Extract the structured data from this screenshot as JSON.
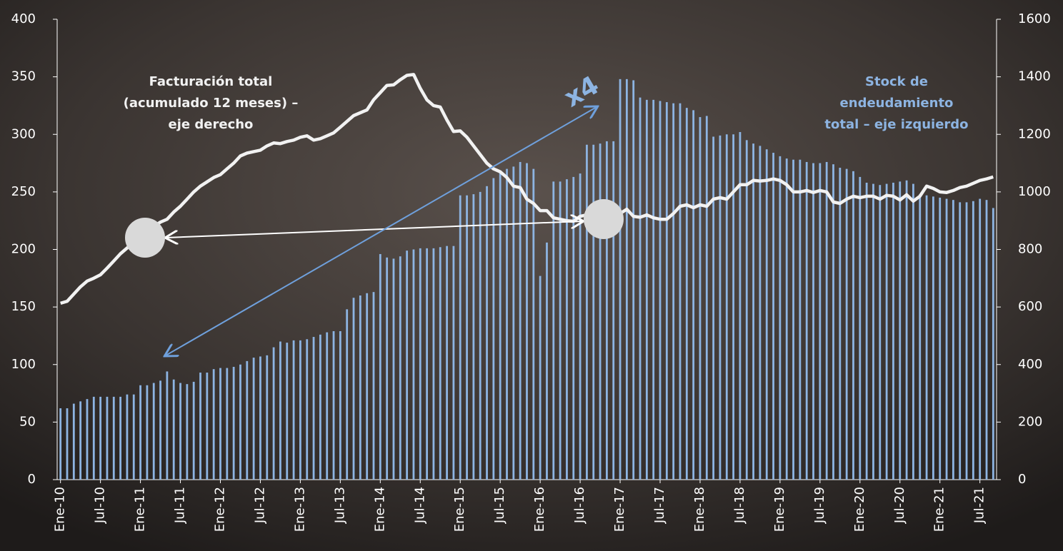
{
  "chart_data": {
    "type": "bar_line",
    "categories": [
      "Ene-10",
      null,
      null,
      null,
      null,
      null,
      "Jul-10",
      null,
      null,
      null,
      null,
      null,
      "Ene-11",
      null,
      null,
      null,
      null,
      null,
      "Jul-11",
      null,
      null,
      null,
      null,
      null,
      "Ene-12",
      null,
      null,
      null,
      null,
      null,
      "Jul-12",
      null,
      null,
      null,
      null,
      null,
      "Ene-13",
      null,
      null,
      null,
      null,
      null,
      "Jul-13",
      null,
      null,
      null,
      null,
      null,
      "Ene-14",
      null,
      null,
      null,
      null,
      null,
      "Jul-14",
      null,
      null,
      null,
      null,
      null,
      "Ene-15",
      null,
      null,
      null,
      null,
      null,
      "Jul-15",
      null,
      null,
      null,
      null,
      null,
      "Ene-16",
      null,
      null,
      null,
      null,
      null,
      "Jul-16",
      null,
      null,
      null,
      null,
      null,
      "Ene-17",
      null,
      null,
      null,
      null,
      null,
      "Jul-17",
      null,
      null,
      null,
      null,
      null,
      "Ene-18",
      null,
      null,
      null,
      null,
      null,
      "Jul-18",
      null,
      null,
      null,
      null,
      null,
      "Ene-19",
      null,
      null,
      null,
      null,
      null,
      "Jul-19",
      null,
      null,
      null,
      null,
      null,
      "Ene-20",
      null,
      null,
      null,
      null,
      null,
      "Jul-20",
      null,
      null,
      null,
      null,
      null,
      "Ene-21",
      null,
      null,
      null,
      null,
      null,
      "Jul-21",
      null,
      null
    ],
    "series": [
      {
        "type": "bar",
        "axis": "y",
        "color": "#8db4e2",
        "values": [
          62,
          62,
          66,
          68,
          70,
          72,
          72,
          72,
          72,
          72,
          74,
          74,
          82,
          82,
          84,
          86,
          94,
          87,
          84,
          83,
          85,
          93,
          93,
          96,
          97,
          97,
          98,
          100,
          103,
          106,
          107,
          108,
          115,
          120,
          119,
          121,
          121,
          122,
          124,
          126,
          128,
          129,
          129,
          148,
          158,
          160,
          162,
          163,
          196,
          193,
          192,
          194,
          199,
          200,
          201,
          201,
          201,
          202,
          203,
          203,
          247,
          247,
          248,
          250,
          255,
          262,
          268,
          270,
          272,
          276,
          275,
          270,
          177,
          206,
          259,
          259,
          261,
          263,
          266,
          291,
          291,
          292,
          294,
          294,
          348,
          348,
          347,
          332,
          330,
          330,
          329,
          328,
          327,
          327,
          323,
          321,
          315,
          316,
          298,
          299,
          300,
          300,
          302,
          295,
          292,
          290,
          287,
          284,
          281,
          279,
          278,
          278,
          276,
          275,
          275,
          276,
          274,
          271,
          270,
          268,
          263,
          258,
          257,
          256,
          257,
          258,
          259,
          260,
          257,
          248,
          247,
          246,
          245,
          244,
          243,
          241,
          241,
          242,
          244,
          243,
          236
        ]
      },
      {
        "type": "line",
        "axis": "y2",
        "color": "#f2f2f2",
        "values": [
          613,
          620,
          645,
          670,
          690,
          700,
          712,
          735,
          760,
          785,
          805,
          825,
          840,
          860,
          880,
          895,
          905,
          930,
          950,
          975,
          1000,
          1020,
          1035,
          1050,
          1060,
          1080,
          1100,
          1125,
          1135,
          1140,
          1145,
          1160,
          1170,
          1168,
          1175,
          1180,
          1190,
          1195,
          1180,
          1185,
          1195,
          1205,
          1225,
          1245,
          1265,
          1275,
          1285,
          1320,
          1345,
          1370,
          1372,
          1390,
          1405,
          1408,
          1360,
          1320,
          1300,
          1295,
          1250,
          1210,
          1212,
          1190,
          1160,
          1130,
          1100,
          1080,
          1070,
          1050,
          1020,
          1015,
          975,
          960,
          935,
          935,
          910,
          905,
          900,
          898,
          915,
          920,
          905,
          910,
          905,
          925,
          925,
          940,
          915,
          912,
          920,
          910,
          905,
          905,
          925,
          950,
          955,
          945,
          955,
          950,
          975,
          980,
          975,
          1000,
          1025,
          1025,
          1040,
          1038,
          1040,
          1045,
          1040,
          1025,
          1000,
          1000,
          1005,
          998,
          1005,
          1000,
          965,
          960,
          975,
          985,
          980,
          985,
          985,
          975,
          988,
          985,
          972,
          990,
          968,
          985,
          1020,
          1012,
          1000,
          998,
          1005,
          1015,
          1020,
          1030,
          1040,
          1045,
          1052
        ]
      }
    ],
    "ylim": [
      0,
      400
    ],
    "yticks": [
      0,
      50,
      100,
      150,
      200,
      250,
      300,
      350,
      400
    ],
    "y2lim": [
      0,
      1600
    ],
    "y2ticks": [
      0,
      200,
      400,
      600,
      800,
      1000,
      1200,
      1400,
      1600
    ],
    "annotations": [
      {
        "lines": [
          "Facturación total",
          "(acumulado 12 meses) –",
          "eje derecho"
        ],
        "color": "#f2f2f2"
      },
      {
        "lines": [
          "Stock de",
          "endeudamiento",
          "total – eje izquierdo"
        ],
        "color": "#8db4e2"
      },
      {
        "lines": [
          "x4"
        ],
        "color": "#8db4e2"
      }
    ]
  }
}
